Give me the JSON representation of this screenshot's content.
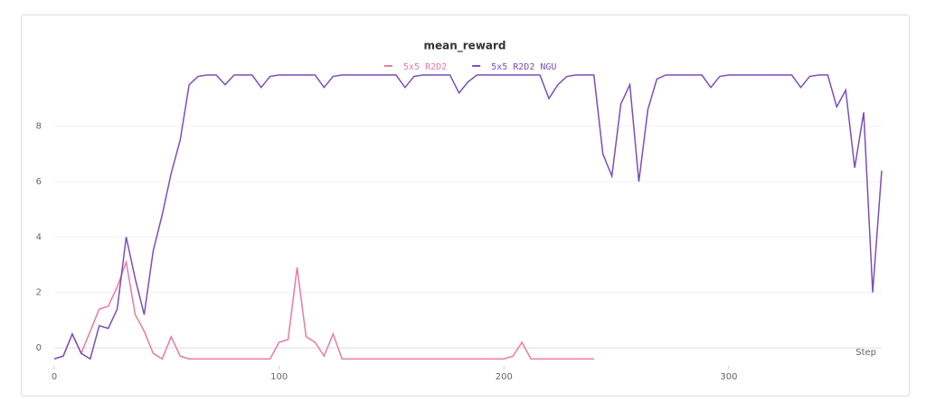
{
  "chart_data": {
    "type": "line",
    "title": "mean_reward",
    "x_label": "Step",
    "x": [
      0,
      4,
      8,
      12,
      16,
      20,
      24,
      28,
      32,
      36,
      40,
      44,
      48,
      52,
      56,
      60,
      64,
      68,
      72,
      76,
      80,
      84,
      88,
      92,
      96,
      100,
      104,
      108,
      112,
      116,
      120,
      124,
      128,
      132,
      136,
      140,
      144,
      148,
      152,
      156,
      160,
      164,
      168,
      172,
      176,
      180,
      184,
      188,
      192,
      196,
      200,
      204,
      208,
      212,
      216,
      220,
      224,
      228,
      232,
      236,
      240,
      244,
      248,
      252,
      256,
      260,
      264,
      268,
      272,
      276,
      280,
      284,
      288,
      292,
      296,
      300,
      304,
      308,
      312,
      316,
      320,
      324,
      328,
      332,
      336,
      340,
      344,
      348,
      352,
      356,
      360,
      364,
      368
    ],
    "series": [
      {
        "name": "5x5 R2D2",
        "color": "#e87ba4",
        "values": [
          -0.4,
          -0.3,
          0.5,
          -0.2,
          0.6,
          1.4,
          1.5,
          2.2,
          3.1,
          1.2,
          0.6,
          -0.2,
          -0.4,
          0.4,
          -0.3,
          -0.4,
          -0.4,
          -0.4,
          -0.4,
          -0.4,
          -0.4,
          -0.4,
          -0.4,
          -0.4,
          -0.4,
          0.2,
          0.3,
          2.9,
          0.4,
          0.2,
          -0.3,
          0.5,
          -0.4,
          -0.4,
          -0.4,
          -0.4,
          -0.4,
          -0.4,
          -0.4,
          -0.4,
          -0.4,
          -0.4,
          -0.4,
          -0.4,
          -0.4,
          -0.4,
          -0.4,
          -0.4,
          -0.4,
          -0.4,
          -0.4,
          -0.3,
          0.2,
          -0.4,
          -0.4,
          -0.4,
          -0.4,
          -0.4,
          -0.4,
          -0.4,
          -0.4,
          null,
          null,
          null,
          null,
          null,
          null,
          null,
          null,
          null,
          null,
          null,
          null,
          null,
          null,
          null,
          null,
          null,
          null,
          null,
          null,
          null,
          null,
          null,
          null,
          null,
          null,
          null,
          null,
          null,
          null,
          null,
          null
        ]
      },
      {
        "name": "5x5 R2D2 NGU",
        "color": "#7b4fb8",
        "values": [
          -0.4,
          -0.3,
          0.5,
          -0.2,
          -0.4,
          0.8,
          0.7,
          1.4,
          4.0,
          2.5,
          1.2,
          3.5,
          4.8,
          6.3,
          7.5,
          9.5,
          9.8,
          9.85,
          9.85,
          9.5,
          9.85,
          9.85,
          9.85,
          9.4,
          9.8,
          9.85,
          9.85,
          9.85,
          9.85,
          9.85,
          9.4,
          9.8,
          9.85,
          9.85,
          9.85,
          9.85,
          9.85,
          9.85,
          9.85,
          9.4,
          9.8,
          9.85,
          9.85,
          9.85,
          9.85,
          9.2,
          9.6,
          9.85,
          9.85,
          9.85,
          9.85,
          9.85,
          9.85,
          9.85,
          9.85,
          9.0,
          9.5,
          9.8,
          9.85,
          9.85,
          9.85,
          7.0,
          6.2,
          8.8,
          9.5,
          6.0,
          8.6,
          9.7,
          9.85,
          9.85,
          9.85,
          9.85,
          9.85,
          9.4,
          9.8,
          9.85,
          9.85,
          9.85,
          9.85,
          9.85,
          9.85,
          9.85,
          9.85,
          9.4,
          9.8,
          9.85,
          9.85,
          8.7,
          9.3,
          6.5,
          8.5,
          2.0,
          6.4
        ]
      }
    ],
    "xlim": [
      0,
      368
    ],
    "xticks": [
      0,
      100,
      200,
      300
    ],
    "ylim": [
      -0.65,
      10.6
    ],
    "yticks": [
      0,
      2,
      4,
      6,
      8
    ],
    "grid": true
  }
}
